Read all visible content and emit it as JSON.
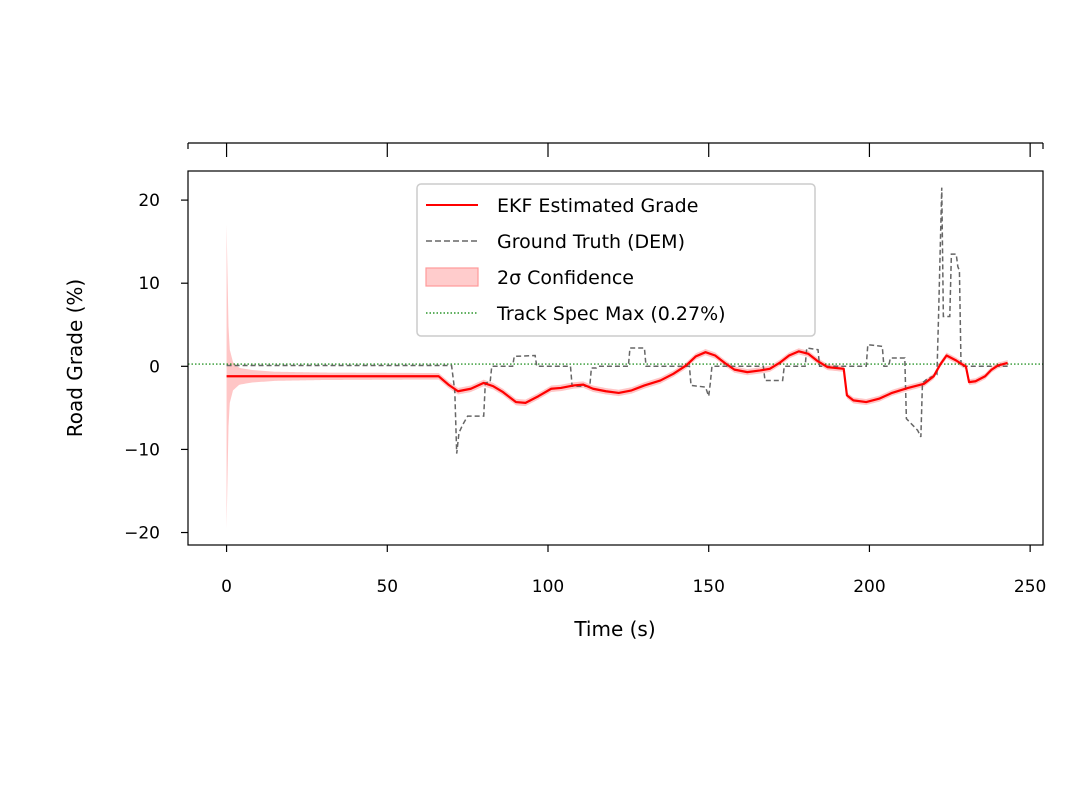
{
  "chart_data": {
    "type": "line",
    "title": "",
    "xlabel": "Time (s)",
    "ylabel": "Road Grade (%)",
    "xlim": [
      -12,
      254
    ],
    "ylim": [
      -21.5,
      23.5
    ],
    "xticks": [
      0,
      50,
      100,
      150,
      200,
      250
    ],
    "yticks": [
      -20,
      -10,
      0,
      10,
      20
    ],
    "top_axis_ticks": [
      0,
      50,
      100,
      150,
      200,
      250
    ],
    "grid": false,
    "legend_position": "upper-center",
    "legend": [
      {
        "label": "EKF Estimated Grade",
        "style": "solid-line",
        "color": "#ff0000"
      },
      {
        "label": "Ground Truth (DEM)",
        "style": "dashed-line",
        "color": "#666666"
      },
      {
        "label": "2σ Confidence",
        "style": "filled-band",
        "color": "#ffb3b3"
      },
      {
        "label": "Track Spec Max (0.27%)",
        "style": "dotted-line",
        "color": "#008000"
      }
    ],
    "reference_line": {
      "name": "Track Spec Max (0.27%)",
      "y": 0.27
    },
    "series": [
      {
        "name": "EKF Estimated Grade",
        "color": "#ff0000",
        "points": [
          [
            0,
            -1.2
          ],
          [
            20,
            -1.2
          ],
          [
            40,
            -1.2
          ],
          [
            60,
            -1.2
          ],
          [
            66,
            -1.2
          ],
          [
            69,
            -2.2
          ],
          [
            72,
            -3.0
          ],
          [
            76,
            -2.7
          ],
          [
            80,
            -2.0
          ],
          [
            83,
            -2.4
          ],
          [
            86,
            -3.1
          ],
          [
            90,
            -4.3
          ],
          [
            93,
            -4.4
          ],
          [
            97,
            -3.6
          ],
          [
            101,
            -2.7
          ],
          [
            104,
            -2.6
          ],
          [
            108,
            -2.3
          ],
          [
            111,
            -2.2
          ],
          [
            114,
            -2.7
          ],
          [
            118,
            -3.0
          ],
          [
            122,
            -3.2
          ],
          [
            126,
            -2.9
          ],
          [
            130,
            -2.3
          ],
          [
            135,
            -1.7
          ],
          [
            139,
            -0.9
          ],
          [
            143,
            0.1
          ],
          [
            146,
            1.2
          ],
          [
            149,
            1.7
          ],
          [
            152,
            1.3
          ],
          [
            155,
            0.4
          ],
          [
            158,
            -0.4
          ],
          [
            162,
            -0.7
          ],
          [
            166,
            -0.5
          ],
          [
            169,
            -0.3
          ],
          [
            172,
            0.4
          ],
          [
            175,
            1.3
          ],
          [
            178,
            1.8
          ],
          [
            181,
            1.5
          ],
          [
            184,
            0.6
          ],
          [
            187,
            -0.1
          ],
          [
            192,
            -0.3
          ],
          [
            193,
            -3.5
          ],
          [
            195,
            -4.1
          ],
          [
            199,
            -4.3
          ],
          [
            203,
            -3.9
          ],
          [
            207,
            -3.2
          ],
          [
            212,
            -2.6
          ],
          [
            217,
            -2.1
          ],
          [
            220,
            -1.2
          ],
          [
            222,
            0.2
          ],
          [
            224,
            1.3
          ],
          [
            227,
            0.7
          ],
          [
            229,
            0.2
          ],
          [
            230,
            0.0
          ],
          [
            231,
            -1.9
          ],
          [
            233,
            -1.8
          ],
          [
            236,
            -1.2
          ],
          [
            238,
            -0.4
          ],
          [
            240,
            0.1
          ],
          [
            243,
            0.4
          ]
        ]
      },
      {
        "name": "Ground Truth (DEM)",
        "color": "#666666",
        "points": [
          [
            0,
            0.1
          ],
          [
            70,
            0.1
          ],
          [
            71,
            -3.0
          ],
          [
            71.6,
            -10.5
          ],
          [
            72.3,
            -8.0
          ],
          [
            73.5,
            -7.0
          ],
          [
            75,
            -6.0
          ],
          [
            80,
            -6.0
          ],
          [
            80.5,
            -2.0
          ],
          [
            82,
            -1.9
          ],
          [
            82.5,
            0.0
          ],
          [
            89,
            0.0
          ],
          [
            89.5,
            1.2
          ],
          [
            96,
            1.3
          ],
          [
            96.5,
            0.0
          ],
          [
            107,
            0.0
          ],
          [
            107.5,
            -2.4
          ],
          [
            113,
            -2.4
          ],
          [
            113.5,
            -0.2
          ],
          [
            115,
            -0.2
          ],
          [
            115.5,
            0.0
          ],
          [
            125,
            0.0
          ],
          [
            125.5,
            2.2
          ],
          [
            130,
            2.2
          ],
          [
            130.5,
            0.0
          ],
          [
            144,
            0.0
          ],
          [
            144.5,
            -2.3
          ],
          [
            149,
            -2.5
          ],
          [
            150,
            -3.6
          ],
          [
            150.5,
            -2.0
          ],
          [
            151,
            0.0
          ],
          [
            167,
            0.0
          ],
          [
            167.5,
            -1.7
          ],
          [
            173,
            -1.7
          ],
          [
            173.5,
            0.0
          ],
          [
            180,
            0.0
          ],
          [
            180.5,
            2.2
          ],
          [
            184,
            2.0
          ],
          [
            184.5,
            0.0
          ],
          [
            199,
            0.0
          ],
          [
            199.5,
            2.6
          ],
          [
            204,
            2.4
          ],
          [
            204.5,
            0.0
          ],
          [
            206,
            0.0
          ],
          [
            206.5,
            1.0
          ],
          [
            211,
            1.0
          ],
          [
            211.5,
            -6.3
          ],
          [
            214,
            -7.3
          ],
          [
            215,
            -7.7
          ],
          [
            216,
            -8.5
          ],
          [
            216.5,
            -2.0
          ],
          [
            218,
            -1.5
          ],
          [
            221,
            -1.0
          ],
          [
            221.5,
            6.0
          ],
          [
            222.5,
            21.5
          ],
          [
            223,
            6.0
          ],
          [
            225,
            6.0
          ],
          [
            225.5,
            13.5
          ],
          [
            227,
            13.5
          ],
          [
            227.5,
            12.0
          ],
          [
            228,
            11.5
          ],
          [
            228.5,
            0.0
          ],
          [
            243,
            0.0
          ]
        ]
      }
    ],
    "confidence_band": {
      "name": "2σ Confidence",
      "color": "#ffb3b3",
      "halfwidth_points": [
        [
          0,
          18.3
        ],
        [
          0.3,
          12.0
        ],
        [
          0.6,
          6.0
        ],
        [
          1,
          3.2
        ],
        [
          2,
          1.7
        ],
        [
          4,
          1.0
        ],
        [
          8,
          0.75
        ],
        [
          15,
          0.55
        ],
        [
          30,
          0.45
        ],
        [
          60,
          0.4
        ],
        [
          243,
          0.35
        ]
      ]
    }
  }
}
